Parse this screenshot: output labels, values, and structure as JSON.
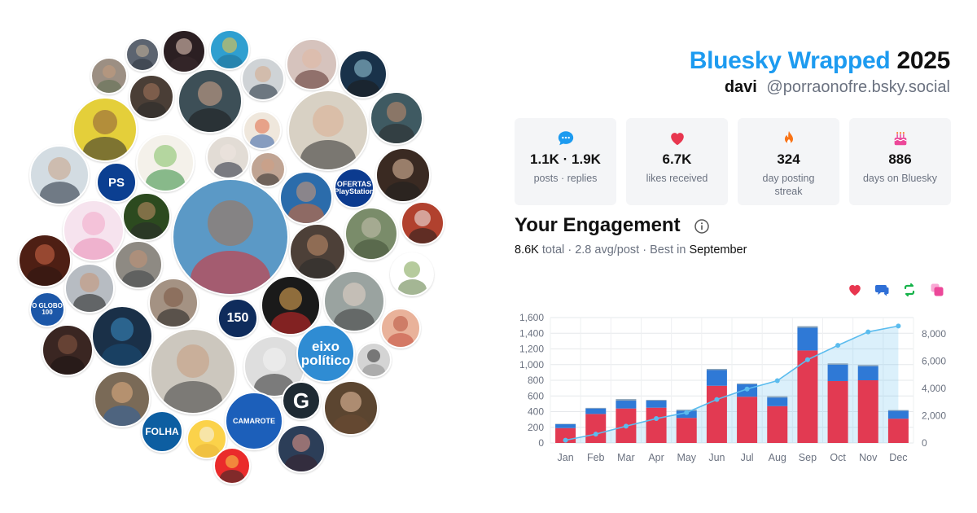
{
  "header": {
    "brand": "Bluesky Wrapped",
    "year": "2025",
    "display_name": "davi",
    "handle": "@porraonofre.bsky.social"
  },
  "stats": [
    {
      "icon": "speech-bubble-icon",
      "value": "1.1K · 1.9K",
      "label": "posts · replies",
      "color": "#1d9bf0"
    },
    {
      "icon": "heart-icon",
      "value": "6.7K",
      "label": "likes received",
      "color": "#e8364f"
    },
    {
      "icon": "flame-icon",
      "value": "324",
      "label": "day posting streak",
      "color": "#f97316"
    },
    {
      "icon": "cake-icon",
      "value": "886",
      "label": "days on Bluesky",
      "color": "#ec4899"
    }
  ],
  "engagement": {
    "title": "Your Engagement",
    "total": "8.6K",
    "total_word": "total",
    "avg": "2.8 avg/post",
    "best_prefix": "Best in",
    "best_month": "September"
  },
  "avatar_labels": {
    "playstation": "PS",
    "ofertas": "OFERTAS",
    "ofertas_sub": "PlayStation",
    "oglobo": "O GLOBO",
    "oglobo_num": "100",
    "estadao": "150",
    "eixo": "eixo",
    "eixo2": "político",
    "folha": "FOLHA",
    "g": "G",
    "camarote": "CAMAROTE"
  },
  "legend": [
    {
      "icon": "heart-icon",
      "color": "#e8364f"
    },
    {
      "icon": "reply-icon",
      "color": "#2f6fd6"
    },
    {
      "icon": "repost-icon",
      "color": "#16b34a"
    },
    {
      "icon": "quote-icon",
      "color": "#ec4899"
    }
  ],
  "chart_data": {
    "type": "bar",
    "categories": [
      "Jan",
      "Feb",
      "Mar",
      "Apr",
      "May",
      "Jun",
      "Jul",
      "Aug",
      "Sep",
      "Oct",
      "Nov",
      "Dec"
    ],
    "series": [
      {
        "name": "likes",
        "color": "#e23a52",
        "values": [
          190,
          370,
          440,
          450,
          320,
          730,
          590,
          470,
          1180,
          790,
          800,
          310
        ]
      },
      {
        "name": "replies",
        "color": "#2f79d6",
        "values": [
          50,
          70,
          100,
          90,
          90,
          200,
          160,
          110,
          290,
          210,
          180,
          100
        ]
      },
      {
        "name": "reposts",
        "color": "#8aa3b8",
        "values": [
          5,
          8,
          20,
          10,
          15,
          15,
          10,
          15,
          20,
          15,
          15,
          10
        ]
      }
    ],
    "cumulative": {
      "values": [
        200,
        650,
        1230,
        1790,
        2230,
        3190,
        3960,
        4570,
        6110,
        7160,
        8150,
        8580
      ],
      "color": "#5bbcee"
    },
    "ylim_left": [
      0,
      1600
    ],
    "yticks_left": [
      "0",
      "200",
      "400",
      "600",
      "800",
      "1,000",
      "1,200",
      "1,400",
      "1,600"
    ],
    "ylim_right": [
      0,
      9200
    ],
    "yticks_right": [
      "0",
      "2,000",
      "4,000",
      "6,000",
      "8,000"
    ],
    "grid": true
  }
}
